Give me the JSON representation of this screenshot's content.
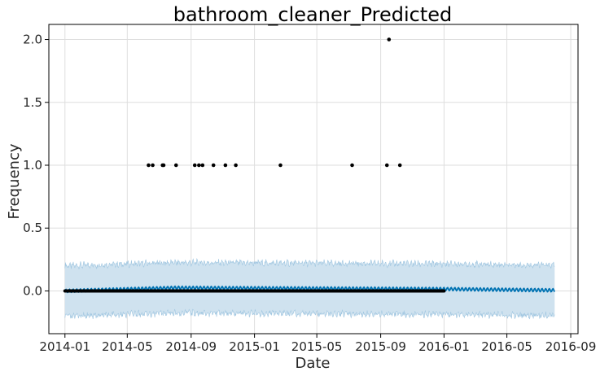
{
  "chart_data": {
    "type": "scatter",
    "title": "bathroom_cleaner_Predicted",
    "xlabel": "Date",
    "ylabel": "Frequency",
    "x_range": [
      "2013-12-01",
      "2016-09-15"
    ],
    "ylim": [
      -0.34,
      2.12
    ],
    "x_ticks": [
      "2014-01",
      "2014-05",
      "2014-09",
      "2015-01",
      "2015-05",
      "2015-09",
      "2016-01",
      "2016-05",
      "2016-09"
    ],
    "y_ticks": [
      0.0,
      0.5,
      1.0,
      1.5,
      2.0
    ],
    "y_tick_labels": [
      "0.0",
      "0.5",
      "1.0",
      "1.5",
      "2.0"
    ],
    "grid": true,
    "observed": {
      "start": "2014-01-01",
      "end": "2016-01-01",
      "baseline_value": 0,
      "points": [
        {
          "x": "2014-06-11",
          "y": 1
        },
        {
          "x": "2014-06-19",
          "y": 1
        },
        {
          "x": "2014-07-08",
          "y": 1
        },
        {
          "x": "2014-07-10",
          "y": 1
        },
        {
          "x": "2014-08-03",
          "y": 1
        },
        {
          "x": "2014-09-08",
          "y": 1
        },
        {
          "x": "2014-09-16",
          "y": 1
        },
        {
          "x": "2014-09-23",
          "y": 1
        },
        {
          "x": "2014-10-14",
          "y": 1
        },
        {
          "x": "2014-11-06",
          "y": 1
        },
        {
          "x": "2014-11-26",
          "y": 1
        },
        {
          "x": "2015-02-20",
          "y": 1
        },
        {
          "x": "2015-07-08",
          "y": 1
        },
        {
          "x": "2015-09-13",
          "y": 1
        },
        {
          "x": "2015-09-17",
          "y": 2
        },
        {
          "x": "2015-10-08",
          "y": 1
        }
      ]
    },
    "forecast": {
      "start": "2014-01-01",
      "end": "2016-08-01",
      "trend": [
        {
          "x": "2014-01-01",
          "y": 0.0
        },
        {
          "x": "2014-08-01",
          "y": 0.025
        },
        {
          "x": "2015-01-01",
          "y": 0.022
        },
        {
          "x": "2015-08-01",
          "y": 0.018
        },
        {
          "x": "2016-01-01",
          "y": 0.015
        },
        {
          "x": "2016-08-01",
          "y": 0.005
        }
      ],
      "weekly_amplitude": 0.012,
      "interval_halfwidth": 0.2
    },
    "colors": {
      "observed": "#000000",
      "forecast_line": "#0072B2",
      "interval": "#cfe2ef",
      "interval_edge": "#9ec5e0",
      "grid": "#dedede",
      "axis": "#000000"
    }
  }
}
